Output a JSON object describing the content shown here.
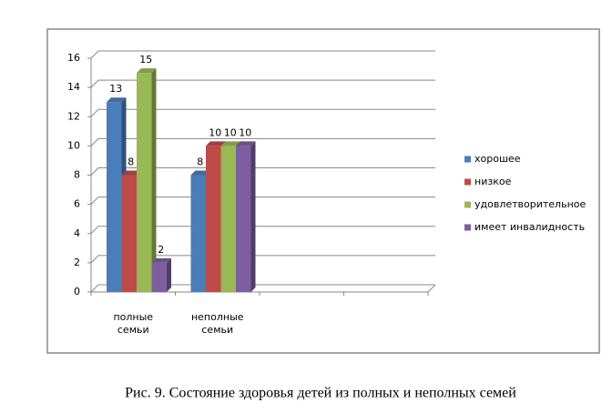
{
  "chart_data": {
    "type": "bar",
    "categories": [
      "полные семьи",
      "неполные семьи",
      null,
      null
    ],
    "series": [
      {
        "name": "хорошее",
        "color": "#4a7ebb",
        "values": [
          13,
          8,
          null,
          null
        ]
      },
      {
        "name": "низкое",
        "color": "#be4b48",
        "values": [
          8,
          10,
          null,
          null
        ]
      },
      {
        "name": "удовлетворительное",
        "color": "#98b954",
        "values": [
          15,
          10,
          null,
          null
        ]
      },
      {
        "name": "имеет инвалидность",
        "color": "#7d5fa0",
        "values": [
          2,
          10,
          null,
          null
        ]
      }
    ],
    "ylim": [
      0,
      16
    ],
    "yticks": [
      0,
      2,
      4,
      6,
      8,
      10,
      12,
      14,
      16
    ],
    "grid": true,
    "legend": "right"
  },
  "caption": "Рис. 9. Состояние здоровья детей из полных и неполных семей"
}
